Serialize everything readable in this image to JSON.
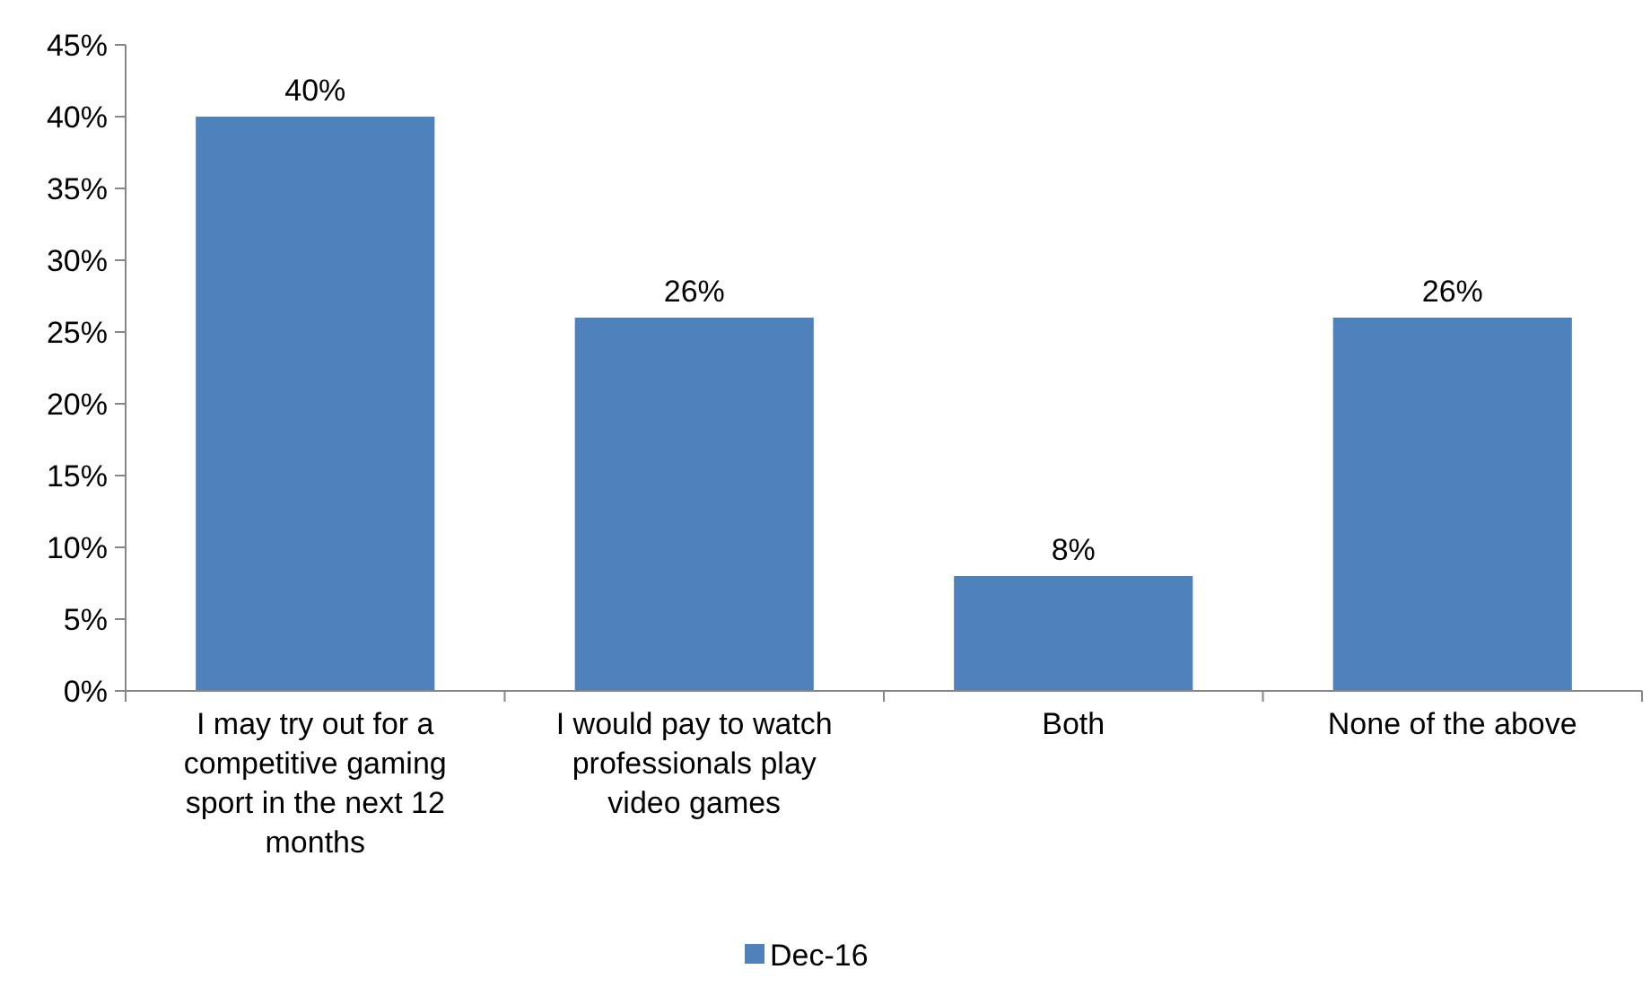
{
  "chart_data": {
    "type": "bar",
    "categories": [
      "I may try out for a competitive gaming sport in the next 12 months",
      "I would pay to watch professionals play video games",
      "Both",
      "None of the above"
    ],
    "series": [
      {
        "name": "Dec-16",
        "color": "#4f81bd",
        "values": [
          40,
          26,
          8,
          26
        ],
        "value_labels": [
          "40%",
          "26%",
          "8%",
          "26%"
        ]
      }
    ],
    "ylim": [
      0,
      45
    ],
    "yticks": [
      {
        "value": 0,
        "label": "0%"
      },
      {
        "value": 5,
        "label": "5%"
      },
      {
        "value": 10,
        "label": "10%"
      },
      {
        "value": 15,
        "label": "15%"
      },
      {
        "value": 20,
        "label": "20%"
      },
      {
        "value": 25,
        "label": "25%"
      },
      {
        "value": 30,
        "label": "30%"
      },
      {
        "value": 35,
        "label": "35%"
      },
      {
        "value": 40,
        "label": "40%"
      },
      {
        "value": 45,
        "label": "45%"
      }
    ],
    "grid": false,
    "legend": "bottom"
  }
}
